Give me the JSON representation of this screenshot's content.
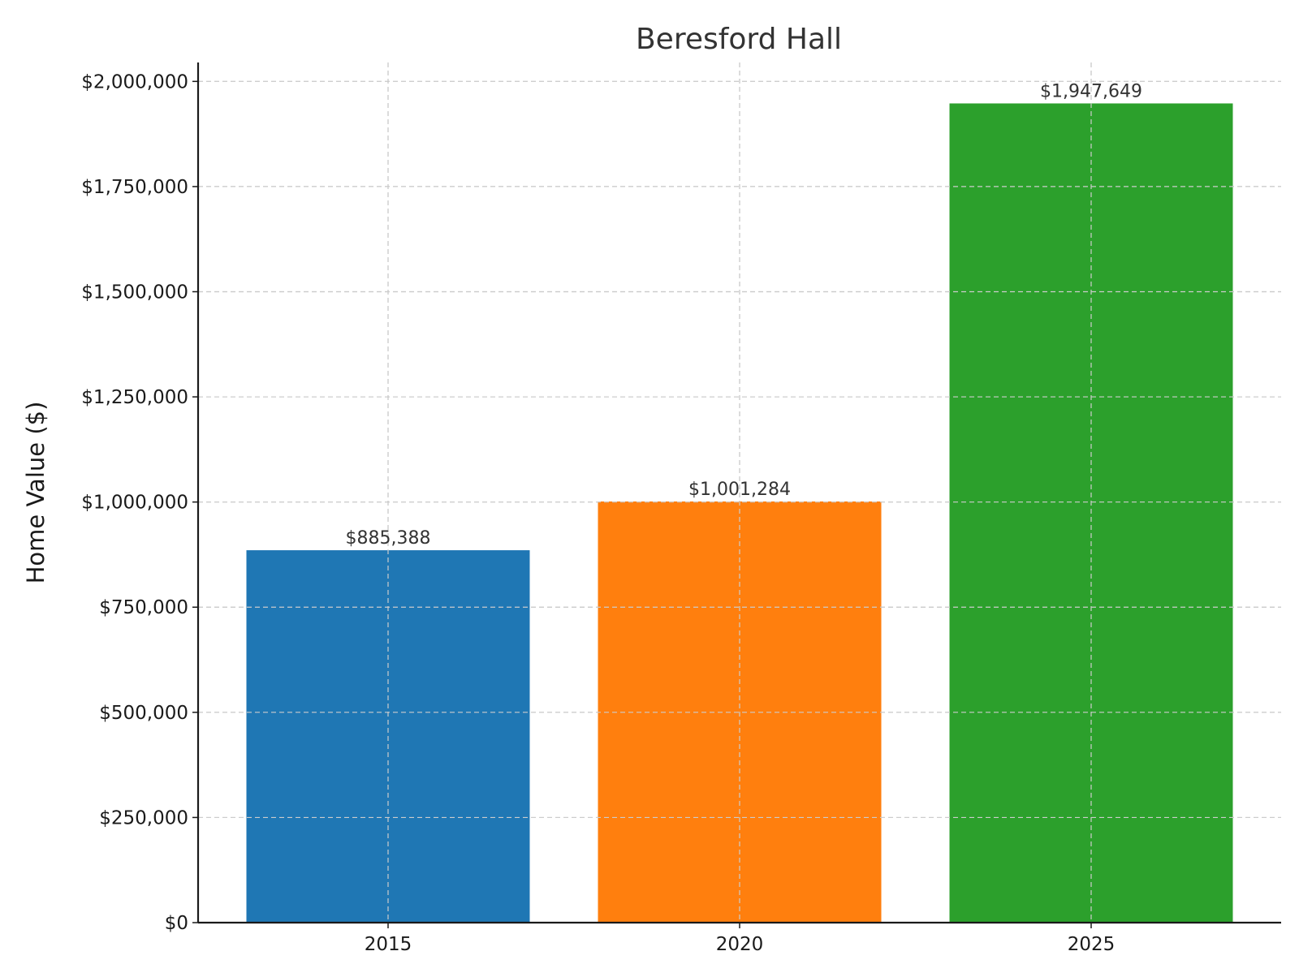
{
  "chart_data": {
    "type": "bar",
    "title": "Beresford Hall",
    "xlabel": "",
    "ylabel": "Home Value ($)",
    "categories": [
      "2015",
      "2020",
      "2025"
    ],
    "values": [
      885388,
      1001284,
      1947649
    ],
    "value_labels": [
      "$885,388",
      "$1,001,284",
      "$1,947,649"
    ],
    "colors": [
      "#1f77b4",
      "#ff7f0e",
      "#2ca02c"
    ],
    "ylim": [
      0,
      2045000
    ],
    "yticks": [
      0,
      250000,
      500000,
      750000,
      1000000,
      1250000,
      1500000,
      1750000,
      2000000
    ],
    "ytick_labels": [
      "$0",
      "$250,000",
      "$500,000",
      "$750,000",
      "$1,000,000",
      "$1,250,000",
      "$1,500,000",
      "$1,750,000",
      "$2,000,000"
    ],
    "grid": true,
    "legend": "none"
  }
}
